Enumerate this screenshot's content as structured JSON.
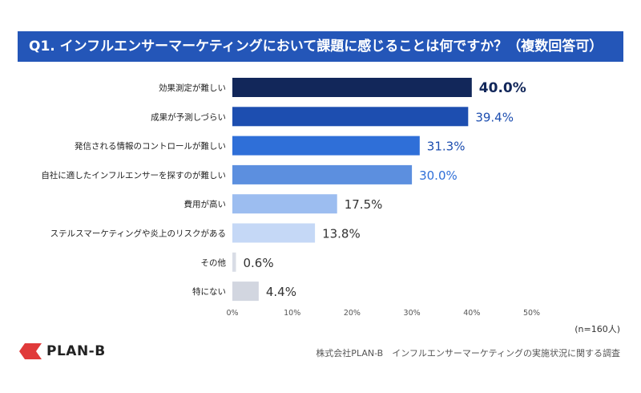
{
  "chart_data": {
    "type": "bar",
    "orientation": "horizontal",
    "title": "Q1. インフルエンサーマーケティングにおいて課題に感じることは何ですか？（複数回答可）",
    "categories": [
      "効果測定が難しい",
      "成果が予測しづらい",
      "発信される情報のコントロールが難しい",
      "自社に適したインフルエンサーを探すのが難しい",
      "費用が高い",
      "ステルスマーケティングや炎上のリスクがある",
      "その他",
      "特にない"
    ],
    "values": [
      40.0,
      39.4,
      31.3,
      30.0,
      17.5,
      13.8,
      0.6,
      4.4
    ],
    "value_labels": [
      "40.0%",
      "39.4%",
      "31.3%",
      "30.0%",
      "17.5%",
      "13.8%",
      "0.6%",
      "4.4%"
    ],
    "bar_colors": [
      "#12275a",
      "#1d4eb0",
      "#2f6fd8",
      "#5c8fdf",
      "#9cbdf0",
      "#c5d8f6",
      "#d9dde6",
      "#d2d6e0"
    ],
    "label_colors": [
      "#12275a",
      "#1d4eb0",
      "#1d4eb0",
      "#2f6fd8",
      "#333333",
      "#333333",
      "#333333",
      "#333333"
    ],
    "xlim": [
      0,
      50
    ],
    "xticks": [
      "0%",
      "10%",
      "20%",
      "30%",
      "40%",
      "50%"
    ],
    "grid": false,
    "sample_note": "(n=160人)"
  },
  "brand": {
    "name": "PLAN-B",
    "mark_color": "#e03a3a"
  },
  "source_text": "株式会社PLAN-B　インフルエンサーマーケティングの実施状況に関する調査"
}
